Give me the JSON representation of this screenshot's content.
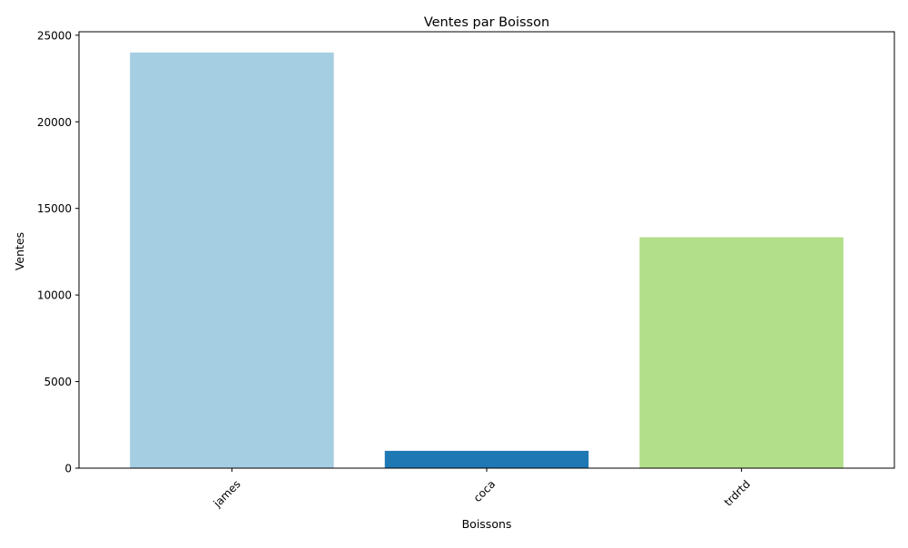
{
  "chart_data": {
    "type": "bar",
    "title": "Ventes par Boisson",
    "xlabel": "Boissons",
    "ylabel": "Ventes",
    "categories": [
      "james",
      "coca",
      "trdrtd"
    ],
    "values": [
      24000,
      1000,
      13333
    ],
    "colors": [
      "#a6cee3",
      "#1f78b4",
      "#b2df8a"
    ],
    "ylim": [
      0,
      25200
    ],
    "yticks": [
      0,
      5000,
      10000,
      15000,
      20000,
      25000
    ],
    "ytick_labels": [
      "0",
      "5000",
      "10000",
      "15000",
      "20000",
      "25000"
    ],
    "xtick_rotation": 45,
    "grid": false,
    "legend": "none"
  }
}
